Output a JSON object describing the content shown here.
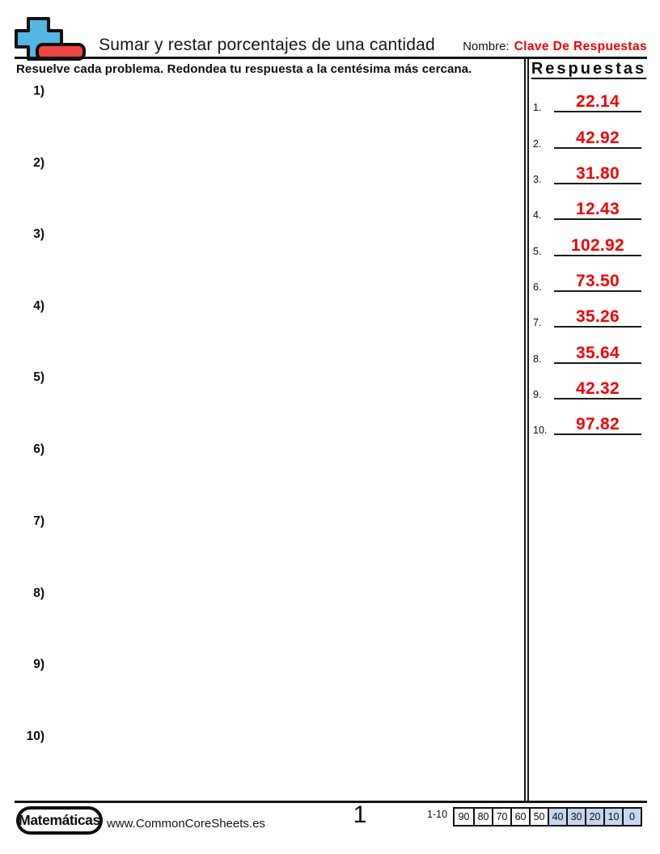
{
  "header": {
    "title": "Sumar y restar porcentajes de una cantidad",
    "name_label": "Nombre:",
    "name_value": "Clave De Respuestas",
    "instruction": "Resuelve cada problema. Redondea tu respuesta a la centésima más cercana.",
    "logo_icon": "plus-minus-math-icon",
    "logo_colors": {
      "plus_fill": "#55b5e5",
      "minus_fill": "#ee4340",
      "outline": "#111111"
    }
  },
  "colors": {
    "answer_red": "#f50000",
    "score_shaded_blue": "#c4d6f0"
  },
  "problems": {
    "numbers": [
      "1)",
      "2)",
      "3)",
      "4)",
      "5)",
      "6)",
      "7)",
      "8)",
      "9)",
      "10)"
    ]
  },
  "answers": {
    "header": "Respuestas",
    "items": [
      {
        "index": "1.",
        "value": "22.14"
      },
      {
        "index": "2.",
        "value": "42.92"
      },
      {
        "index": "3.",
        "value": "31.80"
      },
      {
        "index": "4.",
        "value": "12.43"
      },
      {
        "index": "5.",
        "value": "102.92"
      },
      {
        "index": "6.",
        "value": "73.50"
      },
      {
        "index": "7.",
        "value": "35.26"
      },
      {
        "index": "8.",
        "value": "35.64"
      },
      {
        "index": "9.",
        "value": "42.32"
      },
      {
        "index": "10.",
        "value": "97.82"
      }
    ]
  },
  "footer": {
    "brand": "Matemáticas",
    "website": "www.CommonCoreSheets.es",
    "page_number": "1",
    "score_range_label": "1-10",
    "score_cells": [
      {
        "label": "90",
        "shaded": false
      },
      {
        "label": "80",
        "shaded": false
      },
      {
        "label": "70",
        "shaded": false
      },
      {
        "label": "60",
        "shaded": false
      },
      {
        "label": "50",
        "shaded": false
      },
      {
        "label": "40",
        "shaded": true
      },
      {
        "label": "30",
        "shaded": true
      },
      {
        "label": "20",
        "shaded": true
      },
      {
        "label": "10",
        "shaded": true
      },
      {
        "label": "0",
        "shaded": true
      }
    ]
  }
}
